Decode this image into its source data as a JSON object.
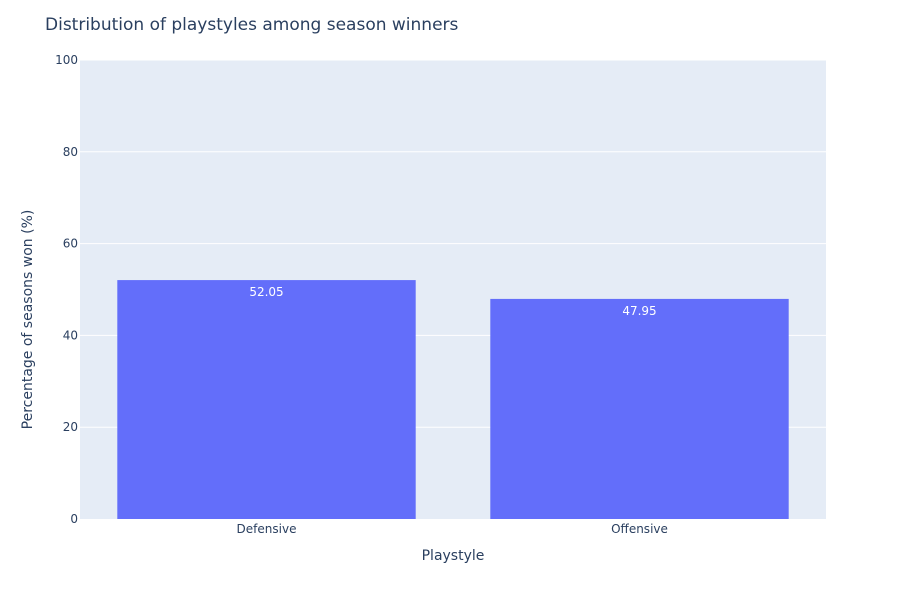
{
  "chart_data": {
    "type": "bar",
    "title": "Distribution of playstyles among season winners",
    "xlabel": "Playstyle",
    "ylabel": "Percentage of seasons won (%)",
    "categories": [
      "Defensive",
      "Offensive"
    ],
    "values": [
      52.05,
      47.95
    ],
    "data_labels": [
      "52.05",
      "47.95"
    ],
    "ylim": [
      0,
      100
    ],
    "yticks": [
      0,
      20,
      40,
      60,
      80,
      100
    ],
    "grid": true,
    "legend": "none",
    "colors": {
      "bar": "#636efa",
      "plot_bg": "#e5ecf6",
      "grid": "#ffffff",
      "text": "#2a3f5f",
      "label_text": "#ffffff"
    }
  }
}
